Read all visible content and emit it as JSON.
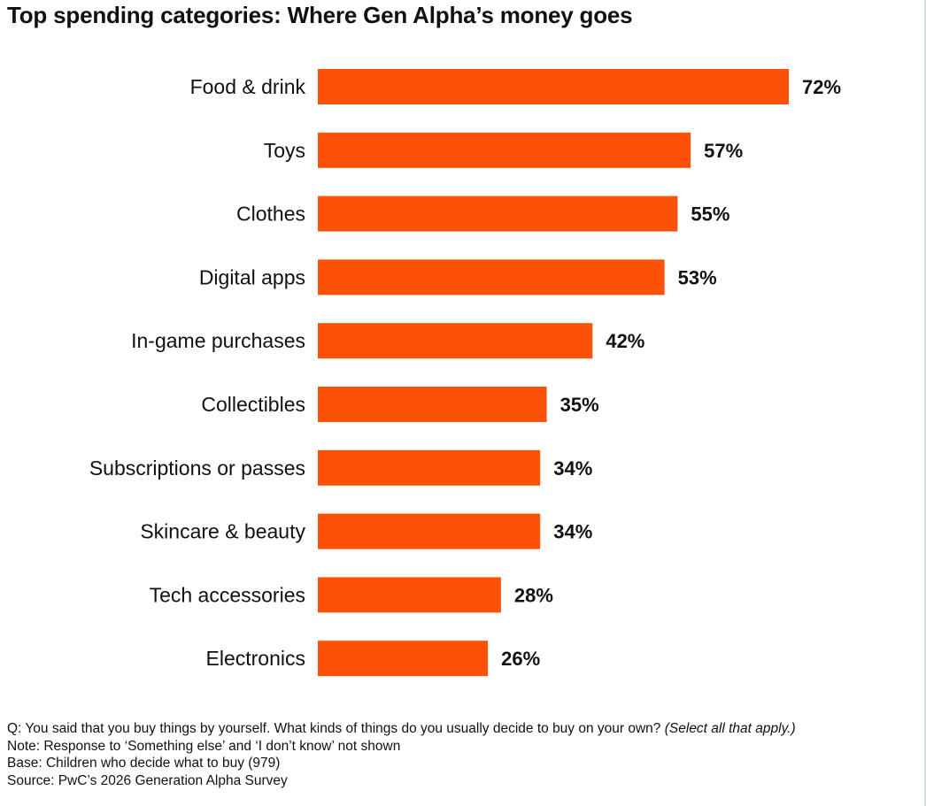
{
  "chart_data": {
    "type": "bar",
    "orientation": "horizontal",
    "title": "Top spending categories: Where Gen Alpha’s money goes",
    "categories": [
      "Food & drink",
      "Toys",
      "Clothes",
      "Digital apps",
      "In-game purchases",
      "Collectibles",
      "Subscriptions or passes",
      "Skincare & beauty",
      "Tech accessories",
      "Electronics"
    ],
    "values": [
      72,
      57,
      55,
      53,
      42,
      35,
      34,
      34,
      28,
      26
    ],
    "value_labels": [
      "72%",
      "57%",
      "55%",
      "53%",
      "42%",
      "35%",
      "34%",
      "34%",
      "28%",
      "26%"
    ],
    "unit": "%",
    "xlim": [
      0,
      72
    ],
    "bar_color": "#fd5108",
    "xlabel": "",
    "ylabel": "",
    "grid": false,
    "legend": "none"
  },
  "notes": {
    "question": "Q: You said that you buy things by yourself. What kinds of things do you usually decide to buy on your own?",
    "question_italic": "(Select all that apply.)",
    "note": "Note: Response to ‘Something else’ and ‘I don’t know’ not shown",
    "base": "Base: Children who decide what to buy (979)",
    "source": "Source: PwC’s 2026 Generation Alpha Survey"
  }
}
